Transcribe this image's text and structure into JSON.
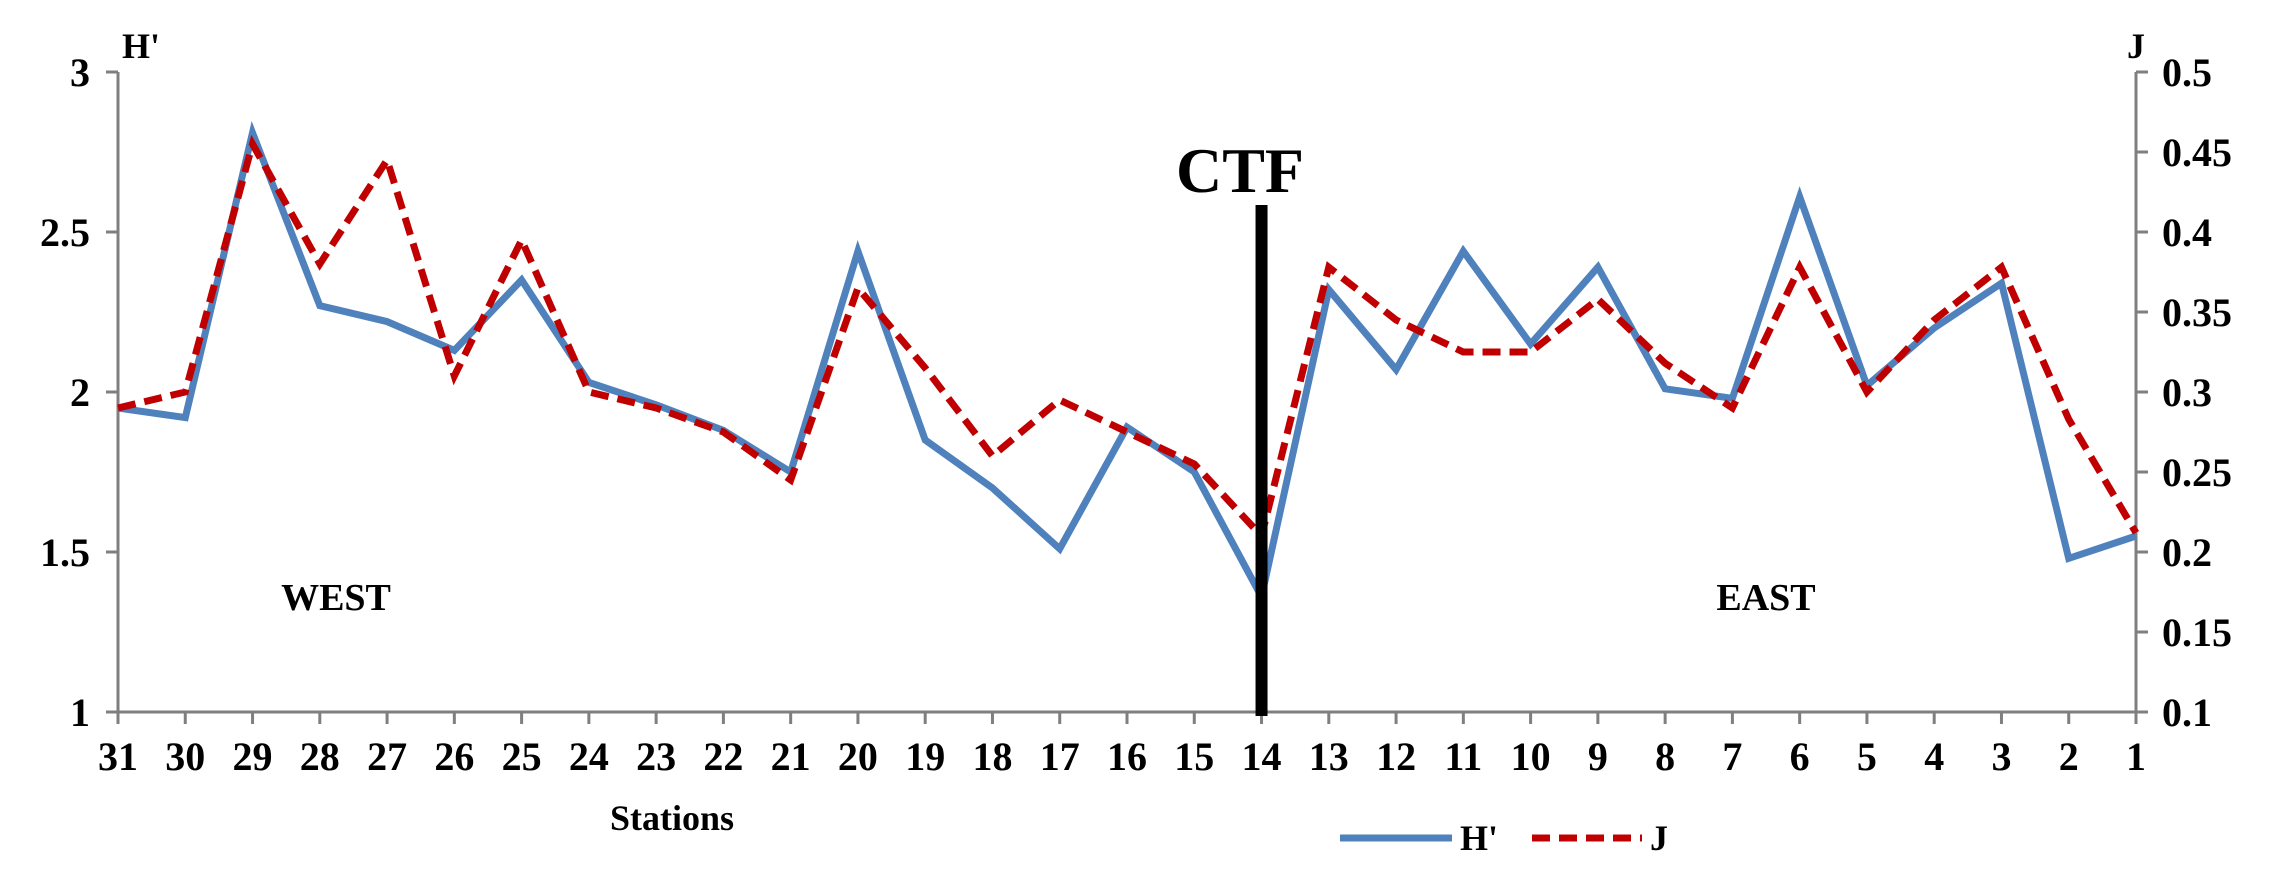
{
  "chart_data": {
    "type": "line",
    "categories": [
      "31",
      "30",
      "29",
      "28",
      "27",
      "26",
      "25",
      "24",
      "23",
      "22",
      "21",
      "20",
      "19",
      "18",
      "17",
      "16",
      "15",
      "14",
      "13",
      "12",
      "11",
      "10",
      "9",
      "8",
      "7",
      "6",
      "5",
      "4",
      "3",
      "2",
      "1"
    ],
    "xlabel": "Stations",
    "ylabel": "H'",
    "y2label": "J",
    "ylim": [
      1,
      3
    ],
    "y2lim": [
      0.1,
      0.5
    ],
    "yticks": [
      "1",
      "1.5",
      "2",
      "2.5",
      "3"
    ],
    "y2ticks": [
      "0.1",
      "0.15",
      "0.2",
      "0.25",
      "0.3",
      "0.35",
      "0.4",
      "0.45",
      "0.5"
    ],
    "grid": false,
    "legend_position": "bottom-right",
    "series": [
      {
        "name": "H'",
        "axis": "left",
        "color": "#4f81bd",
        "style": "solid",
        "values": [
          1.95,
          1.92,
          2.81,
          2.27,
          2.22,
          2.13,
          2.35,
          2.03,
          1.96,
          1.88,
          1.75,
          2.44,
          1.85,
          1.7,
          1.51,
          1.89,
          1.75,
          1.36,
          2.32,
          2.07,
          2.44,
          2.15,
          2.39,
          2.01,
          1.98,
          2.61,
          2.02,
          2.2,
          2.34,
          1.48,
          1.55
        ]
      },
      {
        "name": "J",
        "axis": "right",
        "color": "#c00000",
        "style": "dashed",
        "values": [
          0.29,
          0.3,
          0.455,
          0.38,
          0.445,
          0.31,
          0.395,
          0.3,
          0.29,
          0.275,
          0.245,
          0.365,
          0.315,
          0.26,
          0.295,
          0.275,
          0.255,
          0.21,
          0.378,
          0.345,
          0.325,
          0.325,
          0.358,
          0.318,
          0.29,
          0.378,
          0.3,
          0.345,
          0.378,
          0.283,
          0.212
        ]
      }
    ],
    "annotations": {
      "divider_label": "CTF",
      "divider_at": "14",
      "west_label": "WEST",
      "east_label": "EAST"
    }
  }
}
